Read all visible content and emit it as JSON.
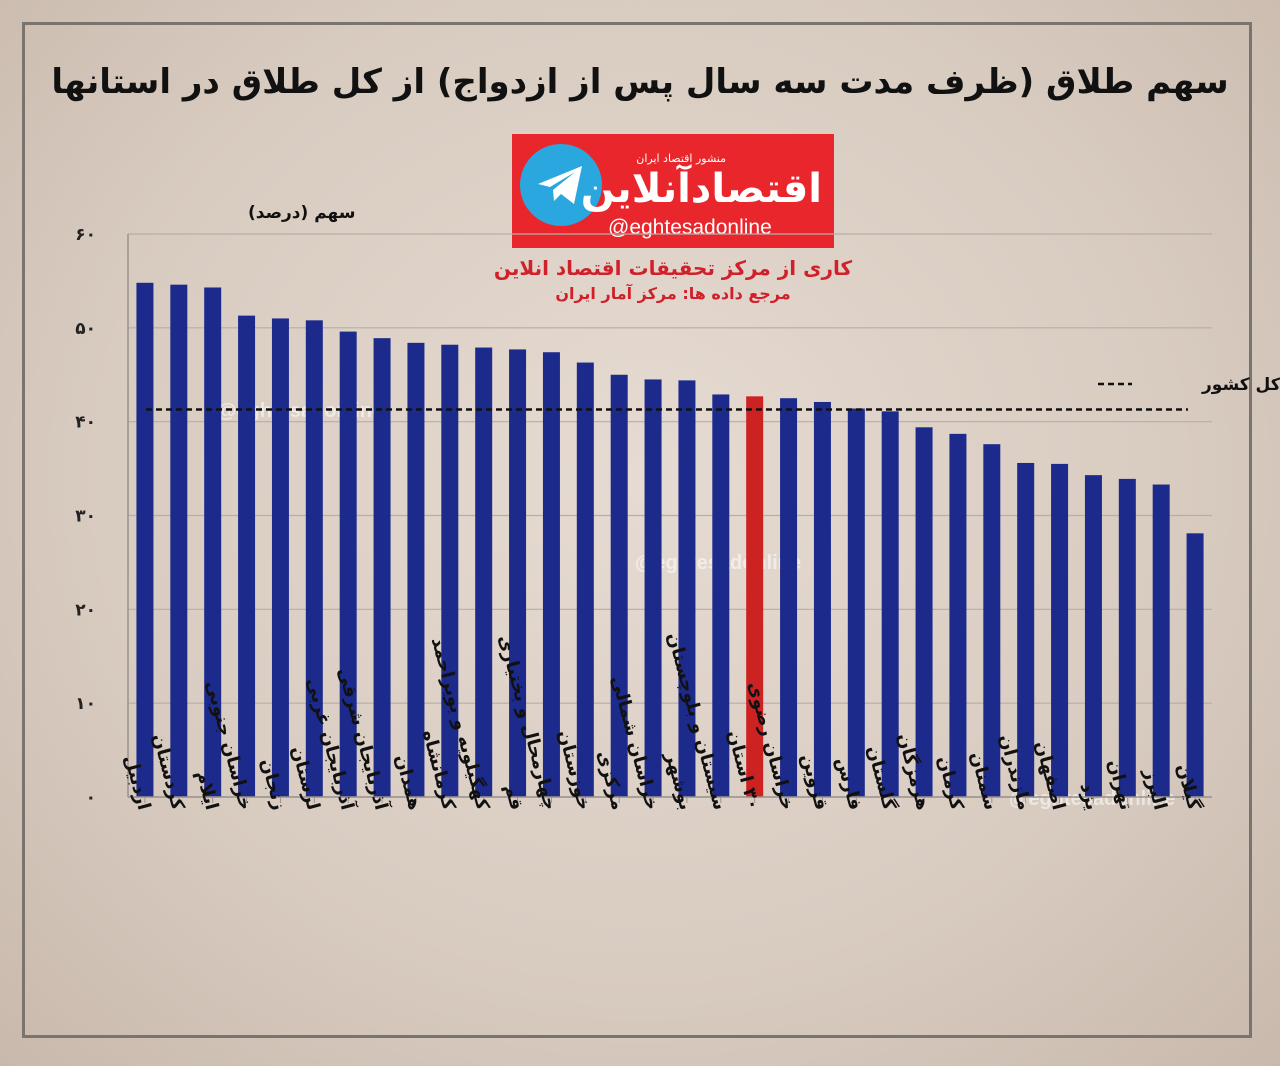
{
  "title": "سهم طلاق (ظرف مدت سه سال پس از ازدواج) از کل طلاق در استانها",
  "logo": {
    "publisher": "منشور اقتصاد ایران",
    "brand": "اقتصادآنلاین",
    "handle": "@eghtesadonline",
    "icon": "telegram-plane-icon"
  },
  "credits": {
    "line1": "کاری از مرکز تحقیقات اقتصاد انلاین",
    "line2": "مرجع داده ها: مرکز آمار ایران"
  },
  "watermark": "@eghtesadonline",
  "colors": {
    "bar": "#1c2a8c",
    "highlight": "#cc2222",
    "reference_line": "#111111"
  },
  "chart_data": {
    "type": "bar",
    "ylabel": "سهم (درصد)",
    "ylim": [
      0,
      60
    ],
    "yticks": [
      {
        "value": 0,
        "label": "۰"
      },
      {
        "value": 10,
        "label": "۱۰"
      },
      {
        "value": 20,
        "label": "۲۰"
      },
      {
        "value": 30,
        "label": "۳۰"
      },
      {
        "value": 40,
        "label": "۴۰"
      },
      {
        "value": 50,
        "label": "۵۰"
      },
      {
        "value": 60,
        "label": "۶۰"
      }
    ],
    "grid": true,
    "categories": [
      "اردبیل",
      "کردستان",
      "ایلام",
      "خراسان جنوبی",
      "زنجان",
      "لرستان",
      "آذربایجان غربی",
      "آذربایجان شرقی",
      "همدان",
      "کرمانشاه",
      "کهگیلویه و بویراحمد",
      "قم",
      "چهارمحال و بختیاری",
      "خوزستان",
      "مرکزی",
      "خراسان شمالی",
      "بوشهر",
      "سیستان و بلوچستان",
      "۳۰ استان",
      "خراسان رضوی",
      "قزوین",
      "فارس",
      "گلستان",
      "هرمزگان",
      "کرمان",
      "سمنان",
      "مازندران",
      "اصفهان",
      "یزد",
      "تهران",
      "البرز",
      "گیلان"
    ],
    "values": [
      54.8,
      54.6,
      54.3,
      51.3,
      51.0,
      50.8,
      49.6,
      48.9,
      48.4,
      48.2,
      47.9,
      47.7,
      47.4,
      46.3,
      45.0,
      44.5,
      44.4,
      42.9,
      42.7,
      42.5,
      42.1,
      41.4,
      41.1,
      39.4,
      38.7,
      37.6,
      35.6,
      35.5,
      34.3,
      33.9,
      33.3,
      28.1
    ],
    "highlight_category": "۳۰ استان",
    "reference_line": {
      "label": "کل کشور",
      "value": 41.3
    }
  }
}
